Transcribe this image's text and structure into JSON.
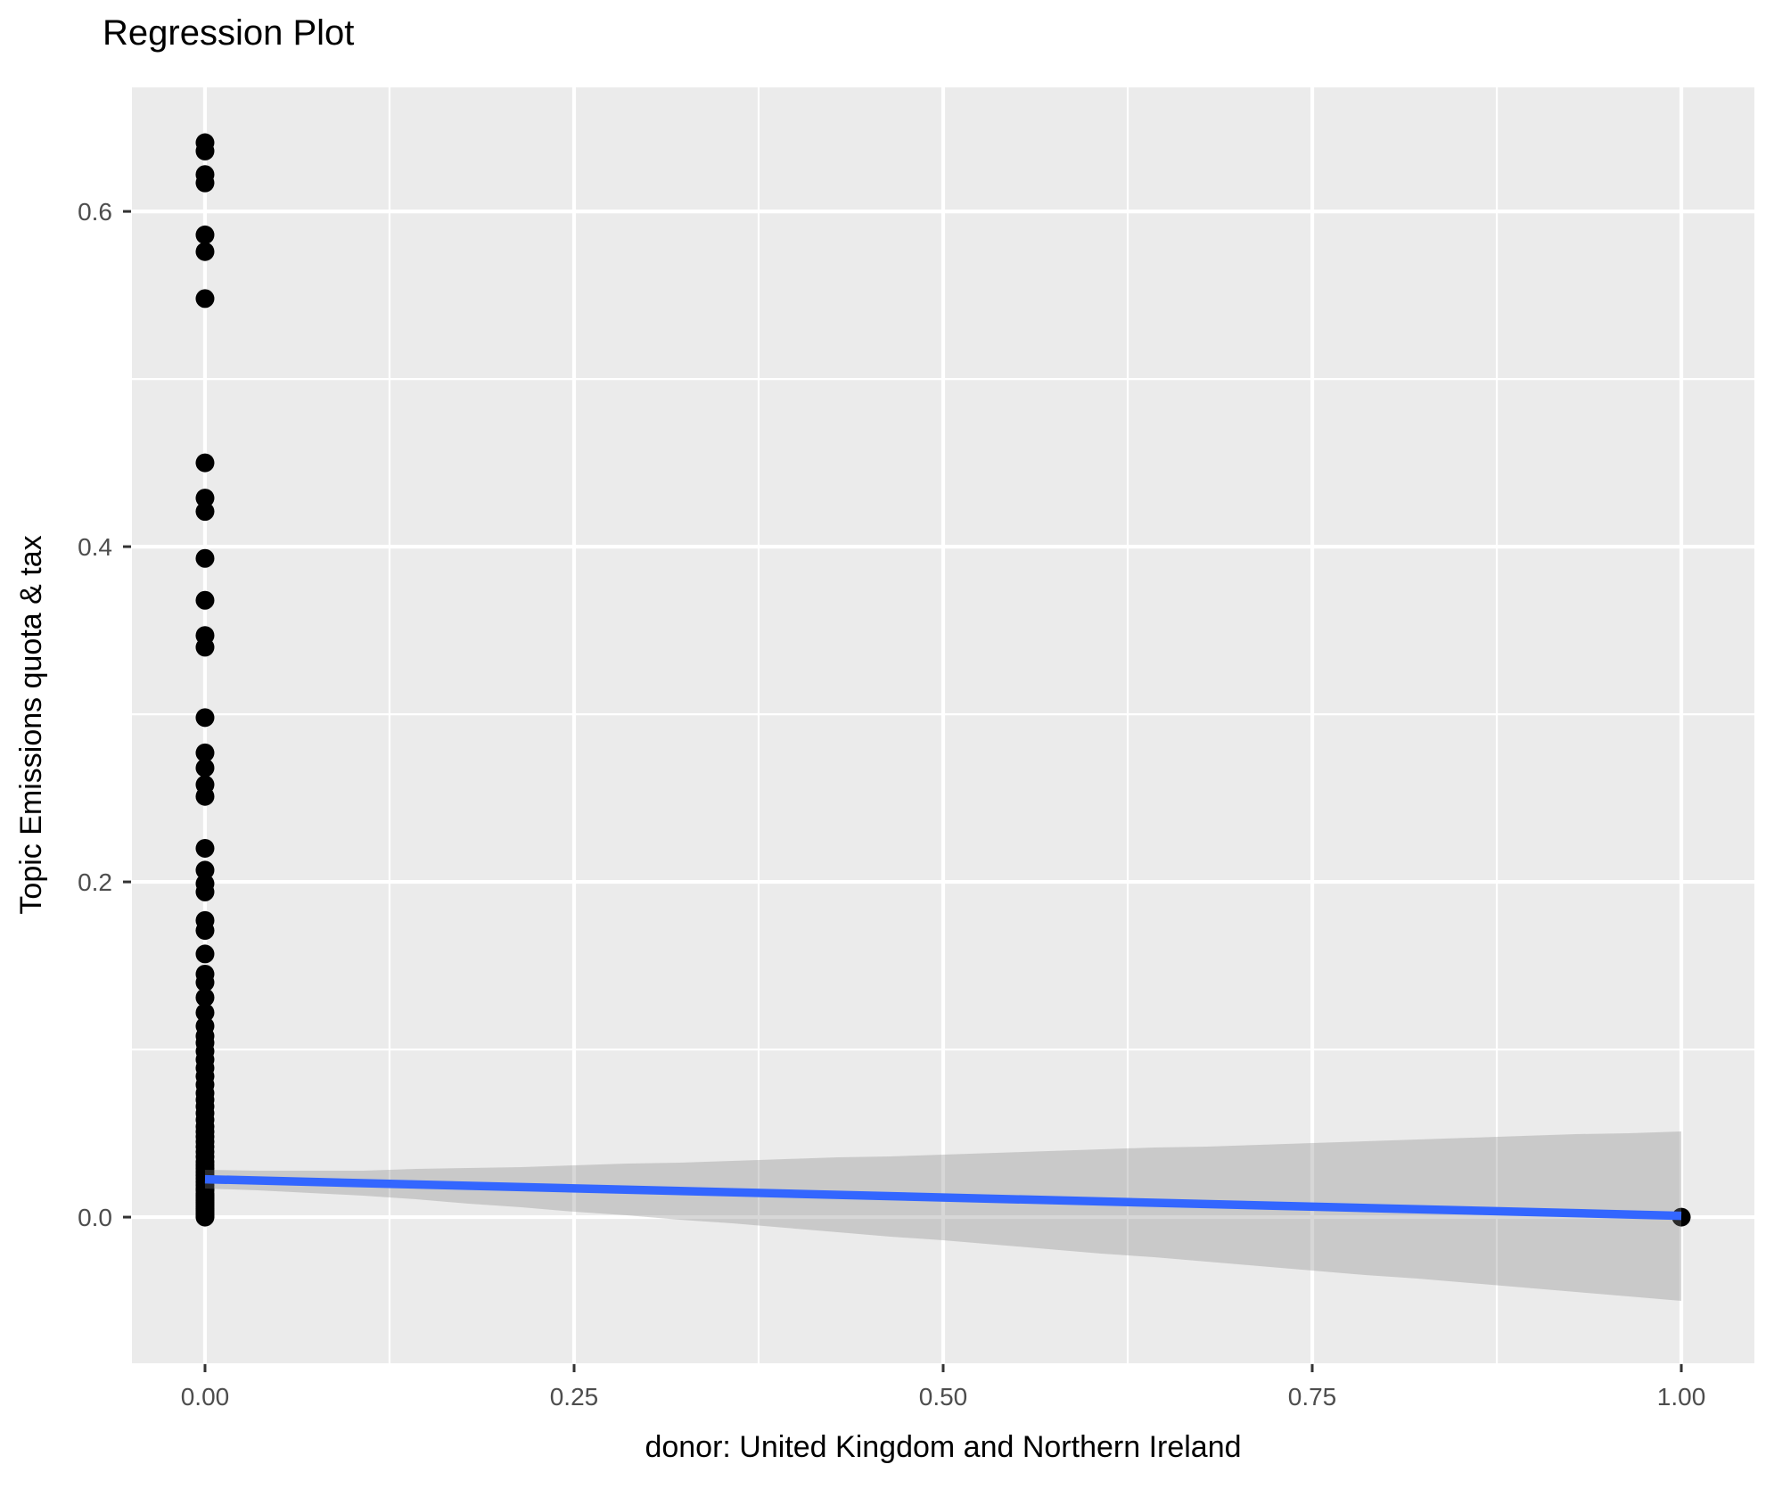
{
  "title": "Regression Plot",
  "colors": {
    "page_bg": "#FFFFFF",
    "panel_bg": "#EBEBEB",
    "gridline": "#FFFFFF",
    "point": "#000000",
    "smooth_line": "#3366FF",
    "ci_band": "rgba(130,130,130,0.32)",
    "tick_mark": "#333333",
    "tick_label": "#4D4D4D",
    "text": "#000000"
  },
  "chart_data": {
    "type": "scatter",
    "title": "Regression Plot",
    "xlabel": "donor: United Kingdom and Northern Ireland",
    "ylabel": "Topic Emissions quota & tax",
    "legend": "none",
    "grid": "on",
    "xlim": [
      -0.0495,
      1.0495
    ],
    "ylim": [
      -0.0872,
      0.674
    ],
    "x_tick_values": [
      0,
      0.25,
      0.5,
      0.75,
      1.0
    ],
    "x_tick_labels": [
      "0.00",
      "0.25",
      "0.50",
      "0.75",
      "1.00"
    ],
    "x_minor_values": [
      0.125,
      0.375,
      0.625,
      0.875
    ],
    "y_tick_values": [
      0,
      0.2,
      0.4,
      0.6
    ],
    "y_tick_labels": [
      "0.0",
      "0.2",
      "0.4",
      "0.6"
    ],
    "y_minor_values": [
      0.1,
      0.3,
      0.5
    ],
    "point_groups": [
      {
        "x": 0,
        "y_values": [
          0.641,
          0.636,
          0.622,
          0.617,
          0.586,
          0.576,
          0.548,
          0.45,
          0.429,
          0.421,
          0.393,
          0.368,
          0.347,
          0.34,
          0.298,
          0.277,
          0.268,
          0.258,
          0.251,
          0.22,
          0.207,
          0.199,
          0.194,
          0.177,
          0.171,
          0.157,
          0.145,
          0.14,
          0.131,
          0.122,
          0.114,
          0.108,
          0.104,
          0.099,
          0.094,
          0.089,
          0.084,
          0.079,
          0.074,
          0.07,
          0.066,
          0.062,
          0.058,
          0.054,
          0.051,
          0.048,
          0.045,
          0.042,
          0.039,
          0.036,
          0.033,
          0.031,
          0.029,
          0.027,
          0.025,
          0.023,
          0.021,
          0.019,
          0.017,
          0.016,
          0.014,
          0.013,
          0.012,
          0.011,
          0.01,
          0.009,
          0.008,
          0.007,
          0.006,
          0.005,
          0.004,
          0.003,
          0.002,
          0.001,
          0.0005,
          0.0
        ]
      },
      {
        "x": 1,
        "y_values": [
          0.0
        ]
      }
    ],
    "regression": {
      "line_y_at_x0": 0.0226,
      "line_y_at_x1": 0.0008,
      "ci_half_width_at_x0": 0.0055,
      "ci_half_width_at_x1": 0.0505
    }
  }
}
